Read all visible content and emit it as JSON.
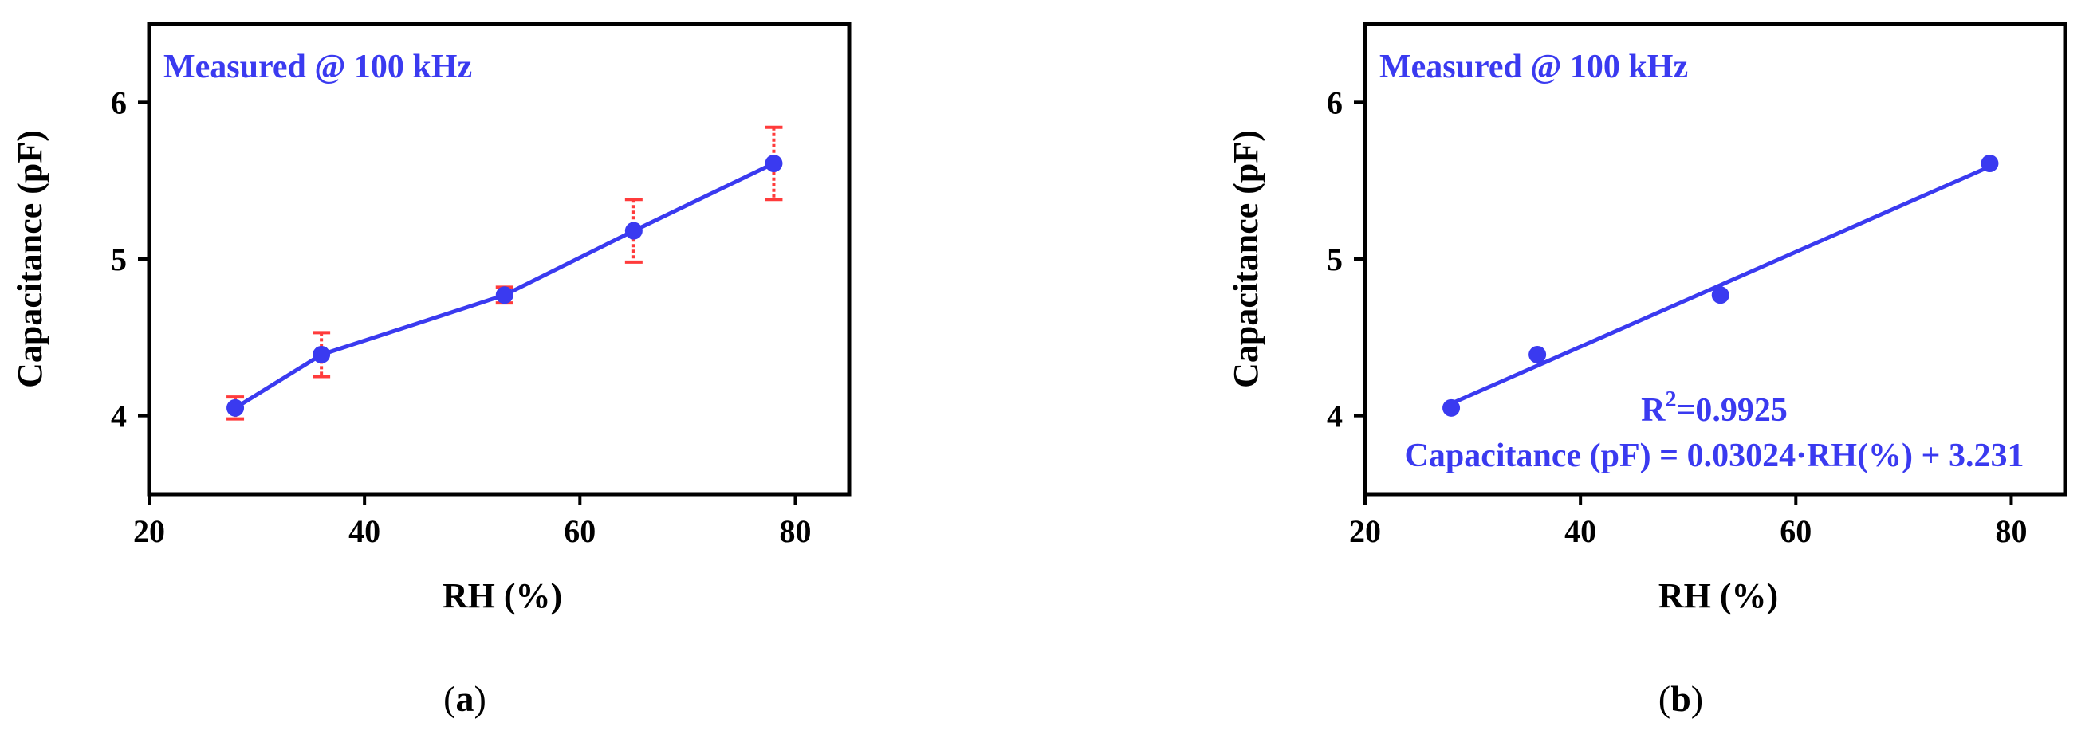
{
  "colors": {
    "series": "#3a3af0",
    "error_bar": "#ff3b3b",
    "axis": "#000000",
    "annotation": "#3a3af0"
  },
  "panels": [
    {
      "label_open": "(",
      "label_letter": "a",
      "label_close": ")",
      "annotation": "Measured @ 100 kHz"
    },
    {
      "label_open": "(",
      "label_letter": "b",
      "label_close": ")",
      "annotation": "Measured @ 100 kHz",
      "r2_base": "R",
      "r2_sup": "2",
      "r2_value": "=0.9925",
      "equation": "Capacitance (pF) = 0.03024·RH(%) + 3.231"
    }
  ],
  "chart_data": [
    {
      "type": "line",
      "xlabel": "RH (%)",
      "ylabel": "Capacitance (pF)",
      "xlim": [
        20,
        85
      ],
      "ylim": [
        3.5,
        6.5
      ],
      "xticks": [
        20,
        40,
        60,
        80
      ],
      "yticks": [
        4,
        5,
        6
      ],
      "grid": false,
      "series": [
        {
          "x": [
            28,
            36,
            53,
            65,
            78
          ],
          "y": [
            4.05,
            4.39,
            4.77,
            5.18,
            5.61
          ],
          "error": [
            0.07,
            0.14,
            0.05,
            0.2,
            0.23
          ],
          "markers": true
        }
      ]
    },
    {
      "type": "scatter",
      "xlabel": "RH (%)",
      "ylabel": "Capacitance (pF)",
      "xlim": [
        20,
        85
      ],
      "ylim": [
        3.5,
        6.5
      ],
      "xticks": [
        20,
        40,
        60,
        80
      ],
      "yticks": [
        4,
        5,
        6
      ],
      "grid": false,
      "series": [
        {
          "x": [
            28,
            36,
            53,
            78
          ],
          "y": [
            4.05,
            4.39,
            4.77,
            5.61
          ]
        }
      ],
      "fit": {
        "slope": 0.03024,
        "intercept": 3.231,
        "x_range": [
          28,
          78
        ],
        "r2": 0.9925
      }
    }
  ]
}
